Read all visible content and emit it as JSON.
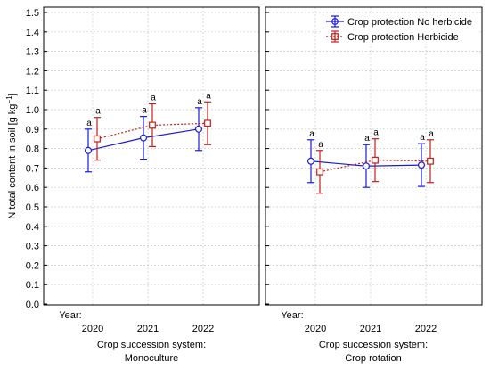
{
  "chart_data": {
    "type": "line",
    "ylabel_main": "N total  content in soil [g kg",
    "ylabel_sup": "−1",
    "ylabel_end": "]",
    "ylim": [
      0.0,
      1.5
    ],
    "yticks": [
      "0.0",
      "0.1",
      "0.2",
      "0.3",
      "0.4",
      "0.5",
      "0.6",
      "0.7",
      "0.8",
      "0.9",
      "1.0",
      "1.1",
      "1.2",
      "1.3",
      "1.4",
      "1.5"
    ],
    "year_label": "Year:",
    "x": [
      "2020",
      "2021",
      "2022"
    ],
    "grid": true,
    "legend_position": "top-right",
    "colors": {
      "no_herbicide": "#1a1adb",
      "herbicide": "#c0201a"
    },
    "legend": {
      "no_herbicide": "Crop protection No herbicide",
      "herbicide": "Crop protection Herbicide"
    },
    "panels": [
      {
        "system_line1": "Crop succession system:",
        "system_line2": "Monoculture",
        "series": [
          {
            "key": "no_herbicide",
            "mean": [
              0.79,
              0.855,
              0.9
            ],
            "lower": [
              0.68,
              0.745,
              0.79
            ],
            "upper": [
              0.9,
              0.965,
              1.01
            ],
            "labels": [
              "a",
              "a",
              "a"
            ]
          },
          {
            "key": "herbicide",
            "mean": [
              0.85,
              0.92,
              0.93
            ],
            "lower": [
              0.74,
              0.81,
              0.82
            ],
            "upper": [
              0.96,
              1.03,
              1.04
            ],
            "labels": [
              "a",
              "a",
              "a"
            ]
          }
        ]
      },
      {
        "system_line1": "Crop succession system:",
        "system_line2": "Crop rotation",
        "series": [
          {
            "key": "no_herbicide",
            "mean": [
              0.735,
              0.71,
              0.715
            ],
            "lower": [
              0.625,
              0.6,
              0.605
            ],
            "upper": [
              0.845,
              0.82,
              0.825
            ],
            "labels": [
              "a",
              "a",
              "a"
            ]
          },
          {
            "key": "herbicide",
            "mean": [
              0.68,
              0.74,
              0.735
            ],
            "lower": [
              0.57,
              0.63,
              0.625
            ],
            "upper": [
              0.79,
              0.85,
              0.845
            ],
            "labels": [
              "a",
              "a",
              "a"
            ]
          }
        ]
      }
    ]
  }
}
